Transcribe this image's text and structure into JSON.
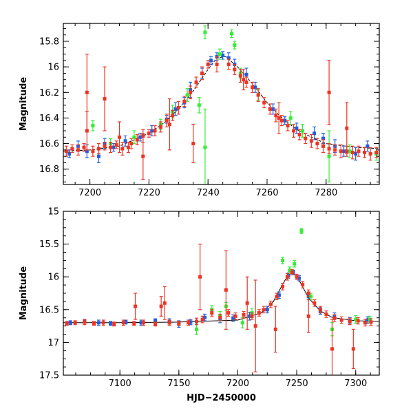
{
  "chart_data": [
    {
      "type": "scatter",
      "title": "",
      "xlabel": "",
      "ylabel": "Magnitude",
      "xlim": [
        7191,
        7298
      ],
      "ylim": [
        16.92,
        15.66
      ],
      "y_inverted": true,
      "xticks": [
        7200,
        7220,
        7240,
        7260,
        7280
      ],
      "xticklabels": [
        "7200",
        "7220",
        "7240",
        "7260",
        "7280"
      ],
      "yticks": [
        15.8,
        16.0,
        16.2,
        16.4,
        16.6,
        16.8
      ],
      "yticklabels": [
        "15.8",
        "16",
        "16.2",
        "16.4",
        "16.6",
        "16.8"
      ],
      "model_curve": {
        "name": "model",
        "x": [
          7191,
          7200,
          7210,
          7220,
          7225,
          7230,
          7235,
          7240,
          7243,
          7246,
          7250,
          7255,
          7260,
          7265,
          7270,
          7275,
          7280,
          7290,
          7298
        ],
        "y": [
          16.66,
          16.65,
          16.62,
          16.52,
          16.44,
          16.33,
          16.19,
          16.02,
          15.93,
          15.92,
          16.0,
          16.13,
          16.28,
          16.4,
          16.49,
          16.55,
          16.6,
          16.63,
          16.64
        ]
      },
      "series": [
        {
          "name": "blue",
          "color": "#1f5fe0",
          "x": [
            7193,
            7196,
            7199,
            7203,
            7205,
            7208,
            7212,
            7217,
            7221,
            7226,
            7229,
            7232,
            7234,
            7238,
            7241,
            7243,
            7245,
            7247,
            7249,
            7253,
            7256,
            7262,
            7266,
            7270,
            7276,
            7279,
            7283,
            7286,
            7290,
            7294
          ],
          "y": [
            16.68,
            16.62,
            16.66,
            16.7,
            16.6,
            16.63,
            16.58,
            16.55,
            16.5,
            16.41,
            16.33,
            16.28,
            16.18,
            16.05,
            15.95,
            15.92,
            15.91,
            15.93,
            15.98,
            16.06,
            16.16,
            16.33,
            16.42,
            16.48,
            16.52,
            16.56,
            16.62,
            16.66,
            16.68,
            16.62
          ],
          "err": [
            0.03,
            0.04,
            0.05,
            0.05,
            0.04,
            0.03,
            0.04,
            0.03,
            0.04,
            0.03,
            0.05,
            0.04,
            0.06,
            0.04,
            0.03,
            0.03,
            0.03,
            0.04,
            0.04,
            0.05,
            0.04,
            0.04,
            0.03,
            0.04,
            0.05,
            0.04,
            0.05,
            0.04,
            0.05,
            0.04
          ]
        },
        {
          "name": "green",
          "color": "#33ee33",
          "x": [
            7201,
            7207,
            7215,
            7224,
            7228,
            7233,
            7237,
            7239,
            7239,
            7244,
            7248,
            7249,
            7251,
            7257,
            7268,
            7272,
            7281,
            7288,
            7297
          ],
          "y": [
            16.46,
            16.6,
            16.55,
            16.45,
            16.35,
            16.22,
            16.3,
            15.73,
            16.63,
            15.9,
            15.74,
            15.83,
            16.05,
            16.22,
            16.4,
            16.5,
            16.7,
            16.66,
            16.68
          ],
          "err": [
            0.04,
            0.04,
            0.05,
            0.04,
            0.05,
            0.05,
            0.06,
            0.05,
            0.3,
            0.04,
            0.03,
            0.03,
            0.04,
            0.04,
            0.05,
            0.05,
            0.2,
            0.05,
            0.05
          ]
        },
        {
          "name": "red",
          "color": "#ee3322",
          "x": [
            7192,
            7194,
            7196,
            7198,
            7199,
            7201,
            7203,
            7205,
            7207,
            7209,
            7211,
            7213,
            7214,
            7216,
            7218,
            7220,
            7222,
            7224,
            7226,
            7228,
            7230,
            7232,
            7234,
            7236,
            7238,
            7240,
            7247,
            7249,
            7251,
            7253,
            7255,
            7257,
            7259,
            7261,
            7263,
            7265,
            7267,
            7269,
            7271,
            7273,
            7275,
            7277,
            7279,
            7281,
            7283,
            7285,
            7287,
            7289,
            7291,
            7293,
            7295,
            7297,
            7199,
            7205,
            7210,
            7218,
            7227,
            7235,
            7281,
            7287,
            7264,
            7243,
            7252
          ],
          "y": [
            16.66,
            16.64,
            16.65,
            16.63,
            16.2,
            16.66,
            16.64,
            16.62,
            16.63,
            16.61,
            16.64,
            16.63,
            16.6,
            16.57,
            16.54,
            16.52,
            16.5,
            16.47,
            16.42,
            16.38,
            16.32,
            16.27,
            16.2,
            16.12,
            16.05,
            15.98,
            15.98,
            16.02,
            16.07,
            16.12,
            16.16,
            16.22,
            16.28,
            16.33,
            16.38,
            16.42,
            16.46,
            16.5,
            16.53,
            16.56,
            16.58,
            16.6,
            16.62,
            16.64,
            16.65,
            16.66,
            16.66,
            16.67,
            16.66,
            16.67,
            16.68,
            16.67,
            16.5,
            16.25,
            16.55,
            16.7,
            16.45,
            16.6,
            16.2,
            16.48,
            16.4,
            15.98,
            16.1
          ],
          "err": [
            0.04,
            0.03,
            0.04,
            0.03,
            0.3,
            0.04,
            0.04,
            0.03,
            0.04,
            0.03,
            0.05,
            0.04,
            0.04,
            0.04,
            0.05,
            0.03,
            0.04,
            0.04,
            0.05,
            0.04,
            0.05,
            0.04,
            0.05,
            0.04,
            0.05,
            0.03,
            0.04,
            0.04,
            0.05,
            0.04,
            0.04,
            0.05,
            0.04,
            0.04,
            0.05,
            0.04,
            0.04,
            0.05,
            0.04,
            0.04,
            0.05,
            0.04,
            0.05,
            0.04,
            0.04,
            0.05,
            0.04,
            0.05,
            0.04,
            0.04,
            0.05,
            0.04,
            0.15,
            0.25,
            0.12,
            0.18,
            0.2,
            0.15,
            0.25,
            0.2,
            0.12,
            0.06,
            0.08
          ]
        }
      ]
    },
    {
      "type": "scatter",
      "title": "",
      "xlabel": "HJD−2450000",
      "ylabel": "Magnitude",
      "xlim": [
        7052,
        7320
      ],
      "ylim": [
        17.5,
        15.0
      ],
      "y_inverted": true,
      "xticks": [
        7100,
        7150,
        7200,
        7250,
        7300
      ],
      "xticklabels": [
        "7100",
        "7150",
        "7200",
        "7250",
        "7300"
      ],
      "yticks": [
        15.0,
        15.5,
        16.0,
        16.5,
        17.0,
        17.5
      ],
      "yticklabels": [
        "15",
        "15.5",
        "16",
        "16.5",
        "17",
        "17.5"
      ],
      "model_curve": {
        "name": "model",
        "x": [
          7052,
          7100,
          7150,
          7200,
          7220,
          7230,
          7240,
          7246,
          7252,
          7260,
          7270,
          7280,
          7300,
          7320
        ],
        "y": [
          16.7,
          16.7,
          16.69,
          16.66,
          16.55,
          16.38,
          16.05,
          15.92,
          16.05,
          16.32,
          16.52,
          16.62,
          16.67,
          16.68
        ],
        "dash": false
      },
      "series": [
        {
          "name": "blue",
          "color": "#1f5fe0",
          "x": [
            7058,
            7070,
            7082,
            7092,
            7105,
            7118,
            7130,
            7142,
            7150,
            7160,
            7172,
            7185,
            7196,
            7210,
            7225,
            7235,
            7243,
            7247,
            7252,
            7260,
            7270,
            7282,
            7295,
            7310
          ],
          "y": [
            16.7,
            16.68,
            16.7,
            16.71,
            16.69,
            16.7,
            16.67,
            16.68,
            16.72,
            16.69,
            16.62,
            16.65,
            16.63,
            16.6,
            16.5,
            16.28,
            15.98,
            15.93,
            16.02,
            16.3,
            16.52,
            16.6,
            16.67,
            16.66
          ],
          "err": [
            0.03,
            0.03,
            0.04,
            0.03,
            0.03,
            0.04,
            0.03,
            0.04,
            0.05,
            0.04,
            0.05,
            0.05,
            0.05,
            0.06,
            0.05,
            0.05,
            0.04,
            0.03,
            0.04,
            0.05,
            0.05,
            0.05,
            0.05,
            0.05
          ]
        },
        {
          "name": "green",
          "color": "#33ee33",
          "x": [
            7165,
            7178,
            7185,
            7190,
            7204,
            7212,
            7238,
            7244,
            7248,
            7254,
            7262,
            7280,
            7300,
            7312
          ],
          "y": [
            16.8,
            16.5,
            16.6,
            16.45,
            16.7,
            16.55,
            15.75,
            15.9,
            15.8,
            15.3,
            16.3,
            16.8,
            16.65,
            16.65
          ],
          "err": [
            0.08,
            0.06,
            0.07,
            0.06,
            0.08,
            0.07,
            0.05,
            0.05,
            0.05,
            0.04,
            0.05,
            0.1,
            0.06,
            0.05
          ]
        },
        {
          "name": "red",
          "color": "#ee3322",
          "x": [
            7055,
            7062,
            7070,
            7078,
            7086,
            7095,
            7103,
            7112,
            7120,
            7130,
            7135,
            7142,
            7150,
            7158,
            7165,
            7170,
            7178,
            7185,
            7192,
            7198,
            7205,
            7212,
            7218,
            7222,
            7228,
            7233,
            7238,
            7242,
            7246,
            7250,
            7255,
            7260,
            7265,
            7270,
            7275,
            7282,
            7288,
            7295,
            7302,
            7308,
            7313,
            7113,
            7138,
            7168,
            7190,
            7208,
            7215,
            7280,
            7298,
            7232,
            7260
          ],
          "y": [
            16.71,
            16.7,
            16.69,
            16.71,
            16.7,
            16.72,
            16.7,
            16.71,
            16.7,
            16.72,
            16.45,
            16.7,
            16.71,
            16.7,
            16.68,
            16.65,
            16.55,
            16.62,
            16.55,
            16.6,
            16.58,
            16.6,
            16.55,
            16.5,
            16.42,
            16.3,
            16.15,
            16.0,
            15.93,
            16.0,
            16.12,
            16.25,
            16.4,
            16.5,
            16.57,
            16.63,
            16.66,
            16.68,
            16.67,
            16.7,
            16.69,
            16.45,
            16.4,
            16.0,
            16.2,
            16.4,
            16.75,
            17.1,
            17.1,
            16.8,
            16.6
          ],
          "err": [
            0.03,
            0.03,
            0.04,
            0.03,
            0.04,
            0.03,
            0.04,
            0.03,
            0.04,
            0.03,
            0.15,
            0.04,
            0.03,
            0.04,
            0.05,
            0.05,
            0.05,
            0.05,
            0.05,
            0.05,
            0.05,
            0.05,
            0.05,
            0.05,
            0.05,
            0.05,
            0.05,
            0.05,
            0.04,
            0.04,
            0.05,
            0.05,
            0.05,
            0.05,
            0.05,
            0.05,
            0.05,
            0.05,
            0.05,
            0.05,
            0.05,
            0.2,
            0.25,
            0.5,
            0.6,
            0.4,
            0.7,
            0.45,
            0.3,
            0.35,
            0.25
          ]
        }
      ]
    }
  ]
}
